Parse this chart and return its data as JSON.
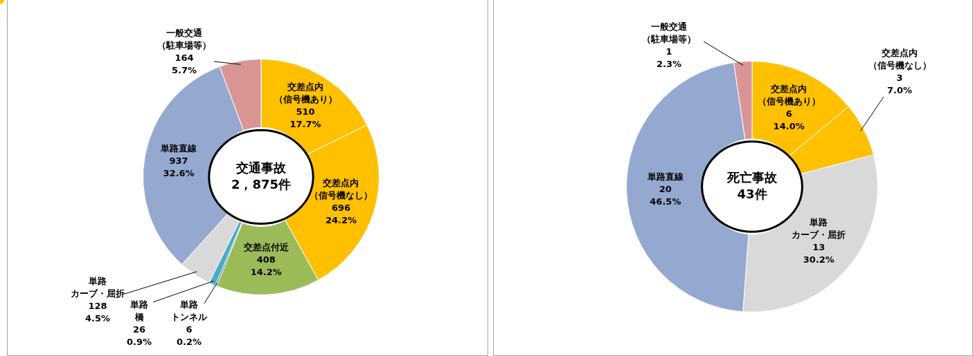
{
  "chart_data": [
    {
      "type": "donut",
      "categories": [
        "交差点内（信号機あり）",
        "交差点内（信号機なし）",
        "交差点付近",
        "単路トンネル",
        "単路橋",
        "単路カーブ・屈折",
        "単路直線",
        "一般交通（駐車場等）"
      ],
      "values": [
        510,
        696,
        408,
        6,
        26,
        128,
        937,
        164
      ],
      "colors": [
        "#ffc000",
        "#ffc000",
        "#9bbb59",
        "#1f6f8b",
        "#4bacc6",
        "#d9d9d9",
        "#95a9d0",
        "#d99594"
      ],
      "value_labels": [
        "510\n17.7%",
        "696\n24.2%",
        "408\n14.2%",
        "6\n0.2%",
        "26\n0.9%",
        "128\n4.5%",
        "937\n32.6%",
        "164\n5.7%"
      ],
      "annotations": [
        "交通事故\n2，875件"
      ]
    },
    {
      "type": "donut",
      "categories": [
        "交差点内（信号機あり）",
        "交差点内（信号機なし）",
        "単路カーブ・屈折",
        "単路直線",
        "一般交通（駐車場等）"
      ],
      "values": [
        6,
        3,
        13,
        20,
        1
      ],
      "colors": [
        "#ffc000",
        "#ffc000",
        "#d9d9d9",
        "#95a9d0",
        "#d99594"
      ],
      "value_labels": [
        "6\n14.0%",
        "3\n7.0%",
        "13\n30.2%",
        "20\n46.5%",
        "1\n2.3%"
      ],
      "annotations": [
        "死亡事故\n43件"
      ]
    }
  ]
}
